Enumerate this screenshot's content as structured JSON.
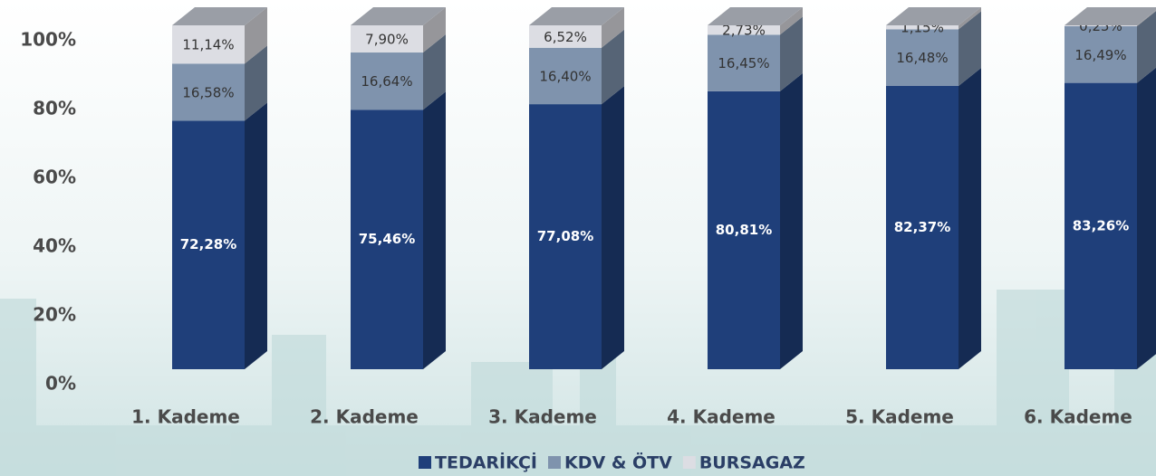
{
  "chart_data": {
    "type": "bar3d_stacked",
    "categories": [
      "1. Kademe",
      "2. Kademe",
      "3. Kademe",
      "4. Kademe",
      "5. Kademe",
      "6. Kademe"
    ],
    "series": [
      {
        "name": "TEDARİKÇİ",
        "color": "#1f3f7a",
        "values": [
          72.28,
          75.46,
          77.08,
          80.81,
          82.37,
          83.26
        ],
        "value_labels": [
          "72,28%",
          "75,46%",
          "77,08%",
          "80,81%",
          "82,37%",
          "83,26%"
        ]
      },
      {
        "name": "KDV & ÖTV",
        "color": "#7f93ad",
        "values": [
          16.58,
          16.64,
          16.4,
          16.45,
          16.48,
          16.49
        ],
        "value_labels": [
          "16,58%",
          "16,64%",
          "16,40%",
          "16,45%",
          "16,48%",
          "16,49%"
        ]
      },
      {
        "name": "BURSAGAZ",
        "color": "#dcdde3",
        "values": [
          11.14,
          7.9,
          6.52,
          2.73,
          1.15,
          0.25
        ],
        "value_labels": [
          "11,14%",
          "7,90%",
          "6,52%",
          "2,73%",
          "1,15%",
          "0,25%"
        ]
      }
    ],
    "ylim": [
      0,
      100
    ],
    "yticks": [
      {
        "value": 0,
        "label": "0%"
      },
      {
        "value": 20,
        "label": "20%"
      },
      {
        "value": 40,
        "label": "40%"
      },
      {
        "value": 60,
        "label": "60%"
      },
      {
        "value": 80,
        "label": "80%"
      },
      {
        "value": 100,
        "label": "100%"
      }
    ],
    "legend": "bottom"
  }
}
